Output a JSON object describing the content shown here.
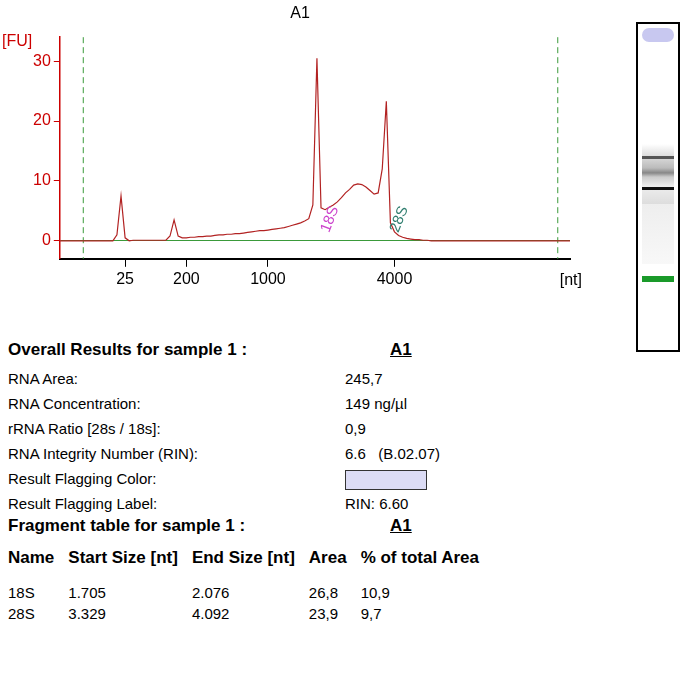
{
  "chart_data": {
    "type": "line",
    "title": "A1",
    "y_label": "[FU]",
    "x_label": "[nt]",
    "color": "#b22222",
    "grid": false,
    "ylim": [
      -3,
      34
    ],
    "yticks": [
      0,
      10,
      20,
      30
    ],
    "categories": [
      null,
      null,
      null,
      null,
      null,
      null,
      null,
      null,
      null,
      null,
      null,
      null,
      null,
      null,
      null,
      null,
      "25",
      null,
      null,
      null,
      null,
      null,
      null,
      null,
      null,
      null,
      null,
      null,
      null,
      null,
      null,
      "200",
      null,
      null,
      null,
      null,
      null,
      null,
      null,
      null,
      null,
      null,
      null,
      null,
      null,
      null,
      null,
      null,
      null,
      null,
      null,
      "1000",
      null,
      null,
      null,
      null,
      null,
      null,
      null,
      null,
      null,
      null,
      null,
      null,
      null,
      null,
      null,
      null,
      null,
      null,
      null,
      null,
      null,
      null,
      null,
      null,
      null,
      null,
      null,
      null,
      null,
      null,
      "4000",
      null,
      null,
      null,
      null,
      null,
      null,
      null,
      null,
      null,
      null,
      null,
      null,
      null,
      null,
      null,
      null,
      null,
      null,
      null,
      null,
      null,
      null,
      null,
      null,
      null,
      null,
      null,
      null,
      null,
      null,
      null,
      null,
      null,
      null,
      null,
      null,
      null,
      null,
      null,
      null,
      null,
      null,
      null
    ],
    "values": [
      0,
      0,
      0,
      0,
      0,
      0,
      0,
      0,
      0,
      0,
      0,
      0,
      0,
      0,
      1.0,
      7.5,
      0.5,
      0,
      0.1,
      0.1,
      0.1,
      0.1,
      0.1,
      0.1,
      0.1,
      0.1,
      0.1,
      0.8,
      3.5,
      0.8,
      0.5,
      0.5,
      0.6,
      0.6,
      0.7,
      0.7,
      0.8,
      0.8,
      0.9,
      1.0,
      1.0,
      1.1,
      1.1,
      1.2,
      1.2,
      1.3,
      1.4,
      1.5,
      1.6,
      1.7,
      1.7,
      1.8,
      1.9,
      2.0,
      2.1,
      2.2,
      2.4,
      2.6,
      2.8,
      3.0,
      3.3,
      3.7,
      6.0,
      30.5,
      5.5,
      5.2,
      5.6,
      6.0,
      6.5,
      7.2,
      8.0,
      8.6,
      9.3,
      9.5,
      9.4,
      9.0,
      8.4,
      7.8,
      8.0,
      12.0,
      23.3,
      3.0,
      1.5,
      0.9,
      0.6,
      0.4,
      0.3,
      0.2,
      0.2,
      0.1,
      0.1,
      0,
      0,
      0,
      0,
      0,
      0,
      0,
      0,
      0,
      0,
      0,
      0,
      0,
      0,
      0,
      0,
      0,
      0,
      0,
      0,
      0,
      0,
      0,
      0,
      0,
      0,
      0,
      0,
      0,
      0,
      0,
      0,
      0,
      0,
      0
    ],
    "annotations": [
      {
        "text": "18S",
        "x": 65,
        "y": 1.5,
        "color": "#cc44cc"
      },
      {
        "text": "28S",
        "x": 82,
        "y": 1.5,
        "color": "#2e7d6e"
      }
    ]
  },
  "report": {
    "overall": {
      "title": "Overall Results for sample 1 :",
      "sample": "A1",
      "rows": [
        {
          "label": "RNA Area:",
          "value": "245,7"
        },
        {
          "label": "RNA Concentration:",
          "value": "149 ng/µl"
        },
        {
          "label": "rRNA Ratio [28s / 18s]:",
          "value": "0,9"
        },
        {
          "label": "RNA Integrity Number (RIN):",
          "value": "6.6   (B.02.07)"
        },
        {
          "label": "Result Flagging Color:",
          "color": "#dcdcf5"
        },
        {
          "label": "Result Flagging Label:",
          "value": "RIN: 6.60"
        }
      ]
    },
    "fragments": {
      "title": "Fragment table for sample 1 :",
      "sample": "A1",
      "header": [
        "Name",
        "Start Size [nt]",
        "End Size [nt]",
        "Area",
        "% of total Area"
      ],
      "rows": [
        [
          "18S",
          "1.705",
          "2.076",
          "26,8",
          "10,9"
        ],
        [
          "28S",
          "3.329",
          "4.092",
          "23,9",
          "9,7"
        ]
      ]
    }
  }
}
